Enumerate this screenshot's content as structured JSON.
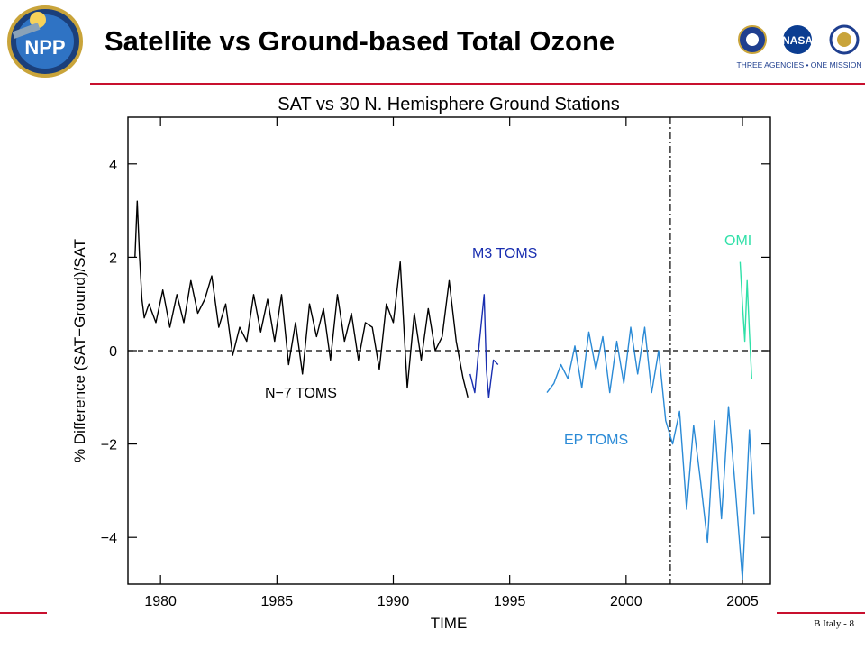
{
  "slide": {
    "title": "Satellite vs Ground-based Total Ozone",
    "footer": "B Italy - 8"
  },
  "logos": {
    "npp_text": "NPP",
    "agencies_motto": "THREE AGENCIES • ONE MISSION",
    "nasa_text": "NASA"
  },
  "colors": {
    "rule": "#c8102e",
    "n7": "#000000",
    "m3": "#1a2fb0",
    "ep": "#2a8ad6",
    "omi": "#2fe0a8"
  },
  "chart_data": {
    "type": "line",
    "title": "SAT vs 30 N. Hemisphere Ground Stations",
    "xlabel": "TIME",
    "ylabel": "% Difference (SAT−Ground)/SAT",
    "xlim": [
      1978.6,
      2006.2
    ],
    "ylim": [
      -5,
      5
    ],
    "xticks": [
      1980,
      1985,
      1990,
      1995,
      2000,
      2005
    ],
    "yticks": [
      -4,
      -2,
      0,
      2,
      4
    ],
    "grid": false,
    "reference_line": 0,
    "vertical_marker_x": 2001.9,
    "series": [
      {
        "name": "N−7 TOMS",
        "x": [
          1978.9,
          1979.0,
          1979.1,
          1979.2,
          1979.3,
          1979.5,
          1979.8,
          1980.1,
          1980.4,
          1980.7,
          1981.0,
          1981.3,
          1981.6,
          1981.9,
          1982.2,
          1982.5,
          1982.8,
          1983.1,
          1983.4,
          1983.7,
          1984.0,
          1984.3,
          1984.6,
          1984.9,
          1985.2,
          1985.5,
          1985.8,
          1986.1,
          1986.4,
          1986.7,
          1987.0,
          1987.3,
          1987.6,
          1987.9,
          1988.2,
          1988.5,
          1988.8,
          1989.1,
          1989.4,
          1989.7,
          1990.0,
          1990.3,
          1990.6,
          1990.9,
          1991.2,
          1991.5,
          1991.8,
          1992.1,
          1992.4,
          1992.7,
          1993.0,
          1993.2
        ],
        "values": [
          2.0,
          3.2,
          2.0,
          1.1,
          0.7,
          1.0,
          0.6,
          1.3,
          0.5,
          1.2,
          0.6,
          1.5,
          0.8,
          1.1,
          1.6,
          0.5,
          1.0,
          -0.1,
          0.5,
          0.2,
          1.2,
          0.4,
          1.1,
          0.2,
          1.2,
          -0.3,
          0.6,
          -0.5,
          1.0,
          0.3,
          0.9,
          -0.2,
          1.2,
          0.2,
          0.8,
          -0.2,
          0.6,
          0.5,
          -0.4,
          1.0,
          0.6,
          1.9,
          -0.8,
          0.8,
          -0.2,
          0.9,
          0.0,
          0.3,
          1.5,
          0.2,
          -0.6,
          -1.0
        ]
      },
      {
        "name": "M3 TOMS",
        "x": [
          1993.3,
          1993.5,
          1993.7,
          1993.9,
          1994.0,
          1994.1,
          1994.3,
          1994.5
        ],
        "values": [
          -0.5,
          -0.9,
          0.2,
          1.2,
          -0.4,
          -1.0,
          -0.2,
          -0.3
        ]
      },
      {
        "name": "EP TOMS",
        "x": [
          1996.6,
          1996.9,
          1997.2,
          1997.5,
          1997.8,
          1998.1,
          1998.4,
          1998.7,
          1999.0,
          1999.3,
          1999.6,
          1999.9,
          2000.2,
          2000.5,
          2000.8,
          2001.1,
          2001.4,
          2001.7,
          2002.0,
          2002.3,
          2002.6,
          2002.9,
          2003.2,
          2003.5,
          2003.8,
          2004.1,
          2004.4,
          2004.7,
          2005.0,
          2005.3,
          2005.5
        ],
        "values": [
          -0.9,
          -0.7,
          -0.3,
          -0.6,
          0.1,
          -0.8,
          0.4,
          -0.4,
          0.3,
          -0.9,
          0.2,
          -0.7,
          0.5,
          -0.5,
          0.5,
          -0.9,
          0.0,
          -1.5,
          -2.0,
          -1.3,
          -3.4,
          -1.6,
          -2.8,
          -4.1,
          -1.5,
          -3.6,
          -1.2,
          -3.0,
          -4.9,
          -1.7,
          -3.5
        ]
      },
      {
        "name": "OMI",
        "x": [
          2004.9,
          2005.0,
          2005.1,
          2005.2,
          2005.3,
          2005.4
        ],
        "values": [
          1.9,
          1.0,
          0.2,
          1.5,
          0.4,
          -0.6
        ]
      }
    ],
    "series_labels": [
      "N−7 TOMS",
      "M3 TOMS",
      "EP TOMS",
      "OMI"
    ]
  }
}
